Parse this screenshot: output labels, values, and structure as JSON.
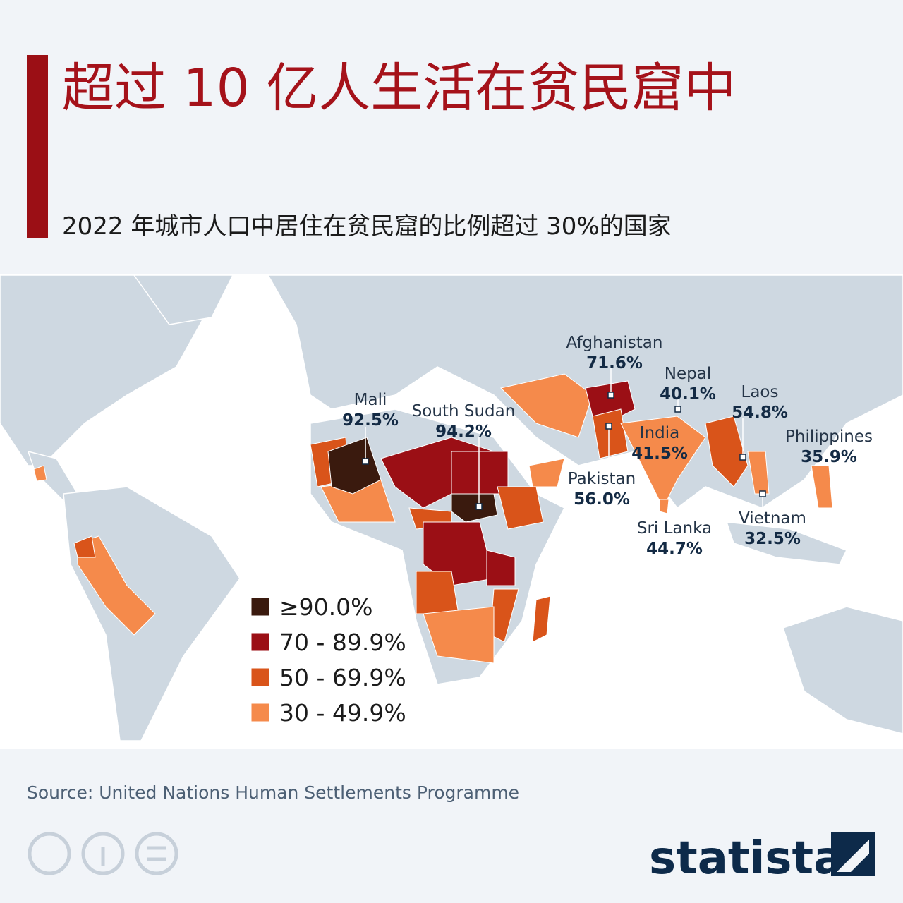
{
  "header": {
    "title": "超过 10 亿人生活在贫民窟中",
    "subtitle": "2022 年城市人口中居住在贫民窟的比例超过 30%的国家"
  },
  "map": {
    "labels": [
      {
        "country": "Mali",
        "value": "92.5%"
      },
      {
        "country": "South Sudan",
        "value": "94.2%"
      },
      {
        "country": "Afghanistan",
        "value": "71.6%"
      },
      {
        "country": "Nepal",
        "value": "40.1%"
      },
      {
        "country": "Laos",
        "value": "54.8%"
      },
      {
        "country": "Philippines",
        "value": "35.9%"
      },
      {
        "country": "India",
        "value": "41.5%"
      },
      {
        "country": "Pakistan",
        "value": "56.0%"
      },
      {
        "country": "Sri Lanka",
        "value": "44.7%"
      },
      {
        "country": "Vietnam",
        "value": "32.5%"
      }
    ]
  },
  "legend": {
    "items": [
      "≥90.0%",
      "70 - 89.9%",
      "50 - 69.9%",
      "30 - 49.9%"
    ]
  },
  "footer": {
    "source": "Source: United Nations Human Settlements Programme",
    "brand": "statista"
  }
}
